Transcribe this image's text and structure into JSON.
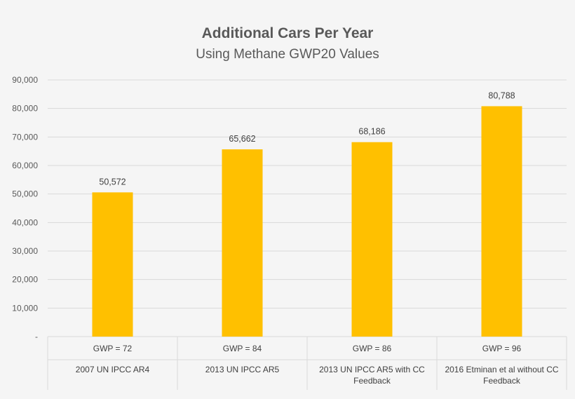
{
  "chart_data": {
    "type": "bar",
    "title": "Additional Cars Per Year",
    "subtitle": "Using Methane GWP20 Values",
    "categories": [
      [
        "GWP = 72",
        "2007 UN IPCC AR4"
      ],
      [
        "GWP = 84",
        "2013 UN IPCC AR5"
      ],
      [
        "GWP = 86",
        "2013 UN IPCC AR5 with CC",
        "Feedback"
      ],
      [
        "GWP = 96",
        "2016 Etminan et al without CC",
        "Feedback"
      ]
    ],
    "values": [
      50572,
      65662,
      68186,
      80788
    ],
    "data_labels": [
      "50,572",
      "65,662",
      "68,186",
      "80,788"
    ],
    "y_ticks": [
      "-",
      "10,000",
      "20,000",
      "30,000",
      "40,000",
      "50,000",
      "60,000",
      "70,000",
      "80,000",
      "90,000"
    ],
    "ylim": [
      0,
      90000
    ],
    "grid": true,
    "bar_color": "#FFC000",
    "grid_color": "#d9d9d9"
  }
}
